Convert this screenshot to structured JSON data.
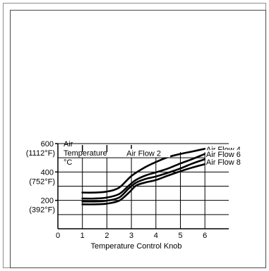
{
  "chart_data": {
    "type": "line",
    "title": "",
    "xlabel": "Temperature Control Knob",
    "ylabel_lines": [
      "Air",
      "Temperature",
      "°C"
    ],
    "x_ticks": [
      "0",
      "1",
      "2",
      "3",
      "4",
      "5",
      "6"
    ],
    "xlim": [
      0,
      6
    ],
    "ylim": [
      0,
      600
    ],
    "y_ticks": [
      {
        "value": 200,
        "label": "200",
        "sublabel": "(392°F)"
      },
      {
        "value": 400,
        "label": "400",
        "sublabel": "(752°F)"
      },
      {
        "value": 600,
        "label": "600",
        "sublabel": "(1112°F)"
      }
    ],
    "grid_y": [
      100,
      200,
      300,
      400,
      500,
      600
    ],
    "grid_x_full": [
      1,
      2,
      3,
      4,
      5,
      6
    ],
    "grid_x_short": [
      4,
      5,
      6
    ],
    "series": [
      {
        "name": "Air Flow 2",
        "label_at": [
          2.8,
          518
        ],
        "points": [
          [
            1,
            255
          ],
          [
            1.5,
            255
          ],
          [
            2,
            262
          ],
          [
            2.5,
            290
          ],
          [
            3,
            372
          ],
          [
            3.5,
            428
          ],
          [
            4,
            470
          ],
          [
            4.5,
            505
          ],
          [
            5,
            527
          ],
          [
            5.5,
            545
          ],
          [
            6,
            563
          ]
        ]
      },
      {
        "name": "Air Flow 4",
        "label_at": [
          6.05,
          546
        ],
        "points": [
          [
            1,
            213
          ],
          [
            1.5,
            213
          ],
          [
            2,
            220
          ],
          [
            2.5,
            245
          ],
          [
            2.9,
            305
          ],
          [
            3.2,
            345
          ],
          [
            3.6,
            377
          ],
          [
            4,
            397
          ],
          [
            4.5,
            425
          ],
          [
            5,
            460
          ],
          [
            5.5,
            492
          ],
          [
            6,
            527
          ]
        ]
      },
      {
        "name": "Air Flow 6",
        "label_at": [
          6.05,
          510
        ],
        "points": [
          [
            1,
            192
          ],
          [
            1.5,
            192
          ],
          [
            2,
            198
          ],
          [
            2.5,
            220
          ],
          [
            2.9,
            285
          ],
          [
            3.2,
            325
          ],
          [
            3.6,
            352
          ],
          [
            4,
            368
          ],
          [
            4.5,
            395
          ],
          [
            5,
            425
          ],
          [
            5.5,
            460
          ],
          [
            6,
            490
          ]
        ]
      },
      {
        "name": "Air Flow 8",
        "label_at": [
          6.05,
          456
        ],
        "points": [
          [
            1,
            172
          ],
          [
            1.5,
            172
          ],
          [
            2,
            177
          ],
          [
            2.5,
            198
          ],
          [
            2.9,
            255
          ],
          [
            3.2,
            305
          ],
          [
            3.6,
            327
          ],
          [
            4,
            343
          ],
          [
            4.5,
            375
          ],
          [
            5,
            405
          ],
          [
            5.5,
            432
          ],
          [
            6,
            455
          ]
        ]
      }
    ]
  }
}
